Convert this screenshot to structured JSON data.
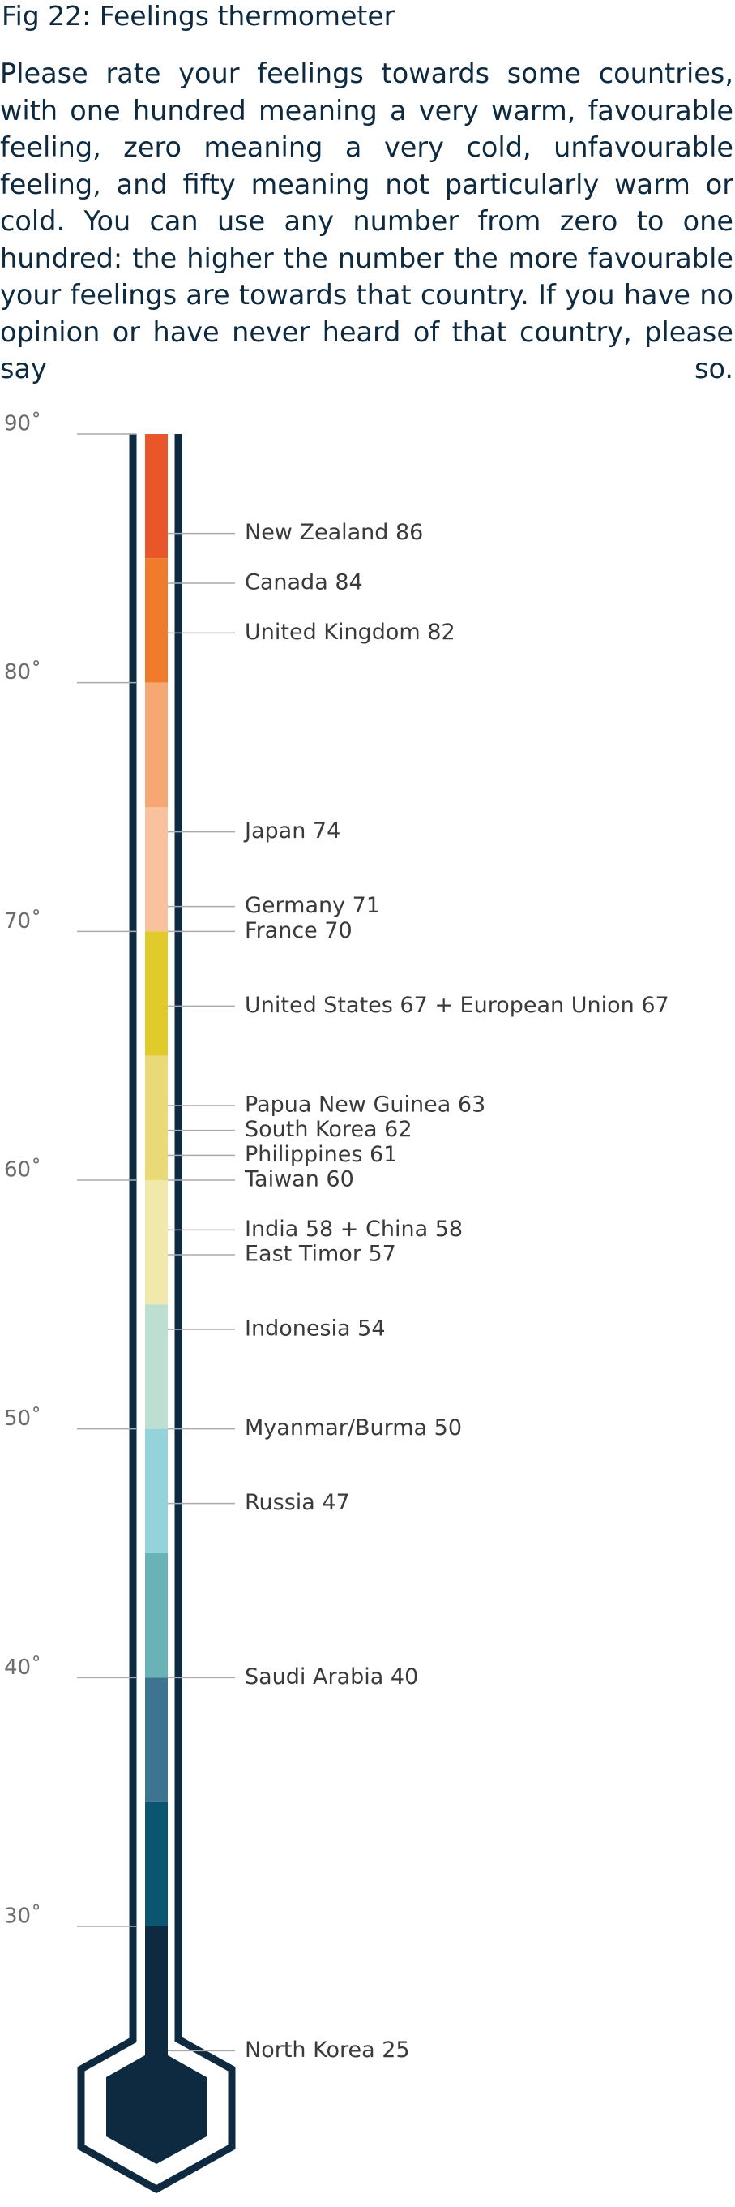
{
  "chart_data": {
    "type": "thermometer",
    "title": "Fig 22: Feelings thermometer",
    "subtitle": "Please rate your feelings towards some countries, with one hundred meaning a very warm, favourable feeling, zero meaning a very cold, unfavourable feeling, and fifty meaning not particularly warm or cold. You can use any number from zero to one hundred: the higher the number the more favourable your feelings are towards that country. If you have no opinion or have never heard of that country, please say so.",
    "ylim": [
      30,
      90
    ],
    "yticks": [
      {
        "value": 90,
        "label": "90˚"
      },
      {
        "value": 80,
        "label": "80˚"
      },
      {
        "value": 70,
        "label": "70˚"
      },
      {
        "value": 60,
        "label": "60˚"
      },
      {
        "value": 50,
        "label": "50˚"
      },
      {
        "value": 40,
        "label": "40˚"
      },
      {
        "value": 30,
        "label": "30˚"
      }
    ],
    "bands": [
      {
        "from": 85,
        "to": 90,
        "color": "#e8562a"
      },
      {
        "from": 80,
        "to": 85,
        "color": "#f07c2b"
      },
      {
        "from": 75,
        "to": 80,
        "color": "#f6a774"
      },
      {
        "from": 70,
        "to": 75,
        "color": "#f9c29d"
      },
      {
        "from": 65,
        "to": 70,
        "color": "#e0cb2b"
      },
      {
        "from": 60,
        "to": 65,
        "color": "#e9da76"
      },
      {
        "from": 55,
        "to": 60,
        "color": "#f1e9ab"
      },
      {
        "from": 50,
        "to": 55,
        "color": "#bcdfd2"
      },
      {
        "from": 45,
        "to": 50,
        "color": "#94d3d9"
      },
      {
        "from": 40,
        "to": 45,
        "color": "#69b3b6"
      },
      {
        "from": 35,
        "to": 40,
        "color": "#3d7590"
      },
      {
        "from": 30,
        "to": 35,
        "color": "#0b5570"
      }
    ],
    "markers": [
      {
        "label": "New Zealand 86",
        "value": 86
      },
      {
        "label": "Canada 84",
        "value": 84
      },
      {
        "label": "United Kingdom 82",
        "value": 82
      },
      {
        "label": "Japan 74",
        "value": 74
      },
      {
        "label": "Germany 71",
        "value": 71
      },
      {
        "label": "France 70",
        "value": 70
      },
      {
        "label": "United States 67 + European Union 67",
        "value": 67
      },
      {
        "label": "Papua New Guinea 63",
        "value": 63
      },
      {
        "label": "South Korea 62",
        "value": 62
      },
      {
        "label": "Philippines 61",
        "value": 61
      },
      {
        "label": "Taiwan 60",
        "value": 60
      },
      {
        "label": "India 58 + China 58",
        "value": 58
      },
      {
        "label": "East Timor 57",
        "value": 57
      },
      {
        "label": "Indonesia 54",
        "value": 54
      },
      {
        "label": "Myanmar/Burma 50",
        "value": 50
      },
      {
        "label": "Russia 47",
        "value": 47
      },
      {
        "label": "Saudi Arabia 40",
        "value": 40
      },
      {
        "label": "North Korea 25",
        "value": 25
      }
    ],
    "color": "#0e2a40"
  }
}
